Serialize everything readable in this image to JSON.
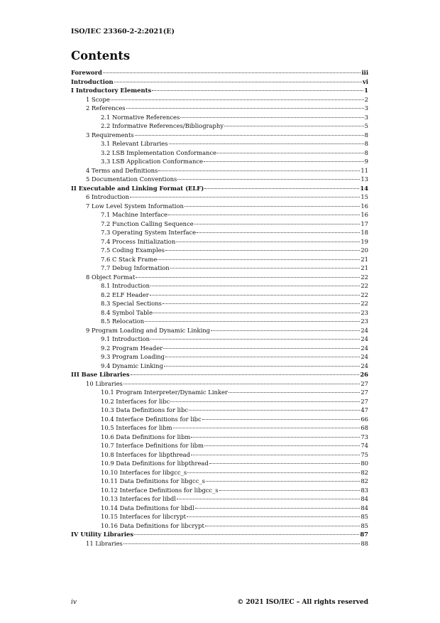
{
  "header": {
    "doc_id": "ISO/IEC 23360-2-2:2021(E)"
  },
  "title": "Contents",
  "toc": [
    {
      "level": 0,
      "label": "Foreword",
      "page": "iii"
    },
    {
      "level": 0,
      "label": "Introduction",
      "page": "vi"
    },
    {
      "level": 0,
      "label": "I Introductory Elements",
      "page": "1"
    },
    {
      "level": 1,
      "label": "1 Scope",
      "page": "2"
    },
    {
      "level": 1,
      "label": "2 References",
      "page": "3"
    },
    {
      "level": 2,
      "label": "2.1 Normative References",
      "page": "3"
    },
    {
      "level": 2,
      "label": "2.2 Informative References/Bibliography",
      "page": "5"
    },
    {
      "level": 1,
      "label": "3 Requirements",
      "page": "8"
    },
    {
      "level": 2,
      "label": "3.1 Relevant Libraries",
      "page": "8"
    },
    {
      "level": 2,
      "label": "3.2 LSB Implementation Conformance",
      "page": "8"
    },
    {
      "level": 2,
      "label": "3.3 LSB Application Conformance",
      "page": "9"
    },
    {
      "level": 1,
      "label": "4 Terms and Definitions",
      "page": "11"
    },
    {
      "level": 1,
      "label": "5 Documentation Conventions",
      "page": "13"
    },
    {
      "level": 0,
      "label": "II Executable and Linking Format (ELF)",
      "page": "14"
    },
    {
      "level": 1,
      "label": "6 Introduction",
      "page": "15"
    },
    {
      "level": 1,
      "label": "7 Low Level System Information",
      "page": "16"
    },
    {
      "level": 2,
      "label": "7.1 Machine Interface",
      "page": "16"
    },
    {
      "level": 2,
      "label": "7.2 Function Calling Sequence",
      "page": "17"
    },
    {
      "level": 2,
      "label": "7.3 Operating System Interface",
      "page": "18"
    },
    {
      "level": 2,
      "label": "7.4 Process Initialization",
      "page": "19"
    },
    {
      "level": 2,
      "label": "7.5 Coding Examples",
      "page": "20"
    },
    {
      "level": 2,
      "label": "7.6 C Stack Frame",
      "page": "21"
    },
    {
      "level": 2,
      "label": "7.7 Debug Information",
      "page": "21"
    },
    {
      "level": 1,
      "label": "8 Object Format",
      "page": "22"
    },
    {
      "level": 2,
      "label": "8.1 Introduction",
      "page": "22"
    },
    {
      "level": 2,
      "label": "8.2 ELF Header",
      "page": "22"
    },
    {
      "level": 2,
      "label": "8.3 Special Sections",
      "page": "22"
    },
    {
      "level": 2,
      "label": "8.4 Symbol Table",
      "page": "23"
    },
    {
      "level": 2,
      "label": "8.5 Relocation",
      "page": "23"
    },
    {
      "level": 1,
      "label": "9 Program Loading and Dynamic Linking",
      "page": "24"
    },
    {
      "level": 2,
      "label": "9.1 Introduction",
      "page": "24"
    },
    {
      "level": 2,
      "label": "9.2 Program Header",
      "page": "24"
    },
    {
      "level": 2,
      "label": "9.3 Program Loading",
      "page": "24"
    },
    {
      "level": 2,
      "label": "9.4 Dynamic Linking",
      "page": "24"
    },
    {
      "level": 0,
      "label": "III Base Libraries",
      "page": "26"
    },
    {
      "level": 1,
      "label": "10 Libraries",
      "page": "27"
    },
    {
      "level": 2,
      "label": "10.1 Program Interpreter/Dynamic Linker",
      "page": "27"
    },
    {
      "level": 2,
      "label": "10.2 Interfaces for libc",
      "page": "27"
    },
    {
      "level": 2,
      "label": "10.3 Data Definitions for libc",
      "page": "47"
    },
    {
      "level": 2,
      "label": "10.4 Interface Definitions for libc",
      "page": "66"
    },
    {
      "level": 2,
      "label": "10.5 Interfaces for libm",
      "page": "68"
    },
    {
      "level": 2,
      "label": "10.6 Data Definitions for libm",
      "page": "73"
    },
    {
      "level": 2,
      "label": "10.7 Interface Definitions for libm",
      "page": "74"
    },
    {
      "level": 2,
      "label": "10.8 Interfaces for libpthread",
      "page": "75"
    },
    {
      "level": 2,
      "label": "10.9 Data Definitions for libpthread",
      "page": "80"
    },
    {
      "level": 2,
      "label": "10.10 Interfaces for libgcc_s",
      "page": "82"
    },
    {
      "level": 2,
      "label": "10.11 Data Definitions for libgcc_s",
      "page": "82"
    },
    {
      "level": 2,
      "label": "10.12 Interface Definitions for libgcc_s",
      "page": "83"
    },
    {
      "level": 2,
      "label": "10.13 Interfaces for libdl",
      "page": "84"
    },
    {
      "level": 2,
      "label": "10.14 Data Definitions for libdl",
      "page": "84"
    },
    {
      "level": 2,
      "label": "10.15 Interfaces for libcrypt",
      "page": "85"
    },
    {
      "level": 2,
      "label": "10.16 Data Definitions for libcrypt",
      "page": "85"
    },
    {
      "level": 0,
      "label": "IV Utility Libraries",
      "page": "87"
    },
    {
      "level": 1,
      "label": "11 Libraries",
      "page": "88"
    }
  ],
  "footer": {
    "page_number": "iv",
    "copyright": "© 2021 ISO/IEC – All rights reserved"
  }
}
